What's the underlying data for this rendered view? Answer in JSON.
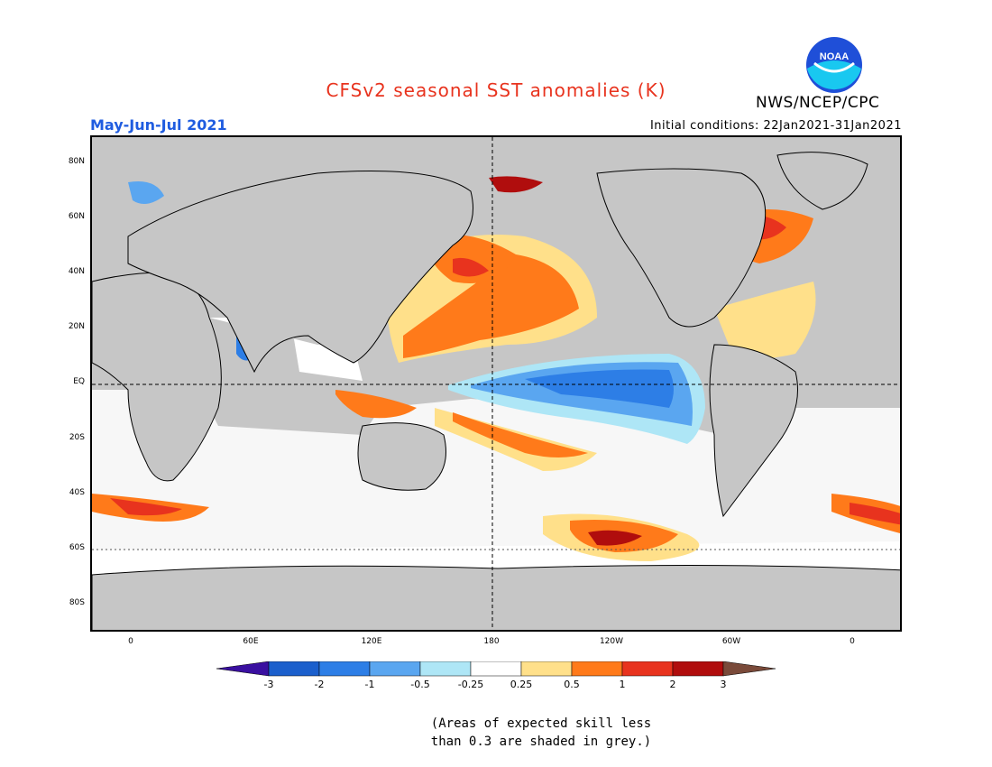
{
  "title": "CFSv2 seasonal SST anomalies (K)",
  "period": "May-Jun-Jul 2021",
  "initial_conditions": "Initial conditions: 22Jan2021-31Jan2021",
  "agency": "NWS/NCEP/CPC",
  "logo_text": "NOAA",
  "colors": {
    "title": "#e8331e",
    "period": "#1f5ce0",
    "land": "#c6c6c6",
    "logo_outer": "#1f4fd8",
    "logo_inner": "#19c8f0"
  },
  "lat_labels": [
    "80N",
    "60N",
    "40N",
    "20N",
    "EQ",
    "20S",
    "40S",
    "60S",
    "80S"
  ],
  "lon_labels": [
    "0",
    "60E",
    "120E",
    "180",
    "120W",
    "60W",
    "0"
  ],
  "colorbar": {
    "ticks": [
      "-3",
      "-2",
      "-1",
      "-0.5",
      "-0.25",
      "0.25",
      "0.5",
      "1",
      "2",
      "3"
    ],
    "colors": [
      "#3a10a0",
      "#1b5fcc",
      "#2d7ee6",
      "#5aa6f0",
      "#aee6f6",
      "#ffffff",
      "#ffe08a",
      "#ff7a1a",
      "#e8331e",
      "#b00d0d",
      "#7a4a3a"
    ]
  },
  "note_line1": "(Areas of expected skill less",
  "note_line2": "than 0.3 are shaded in grey.)"
}
